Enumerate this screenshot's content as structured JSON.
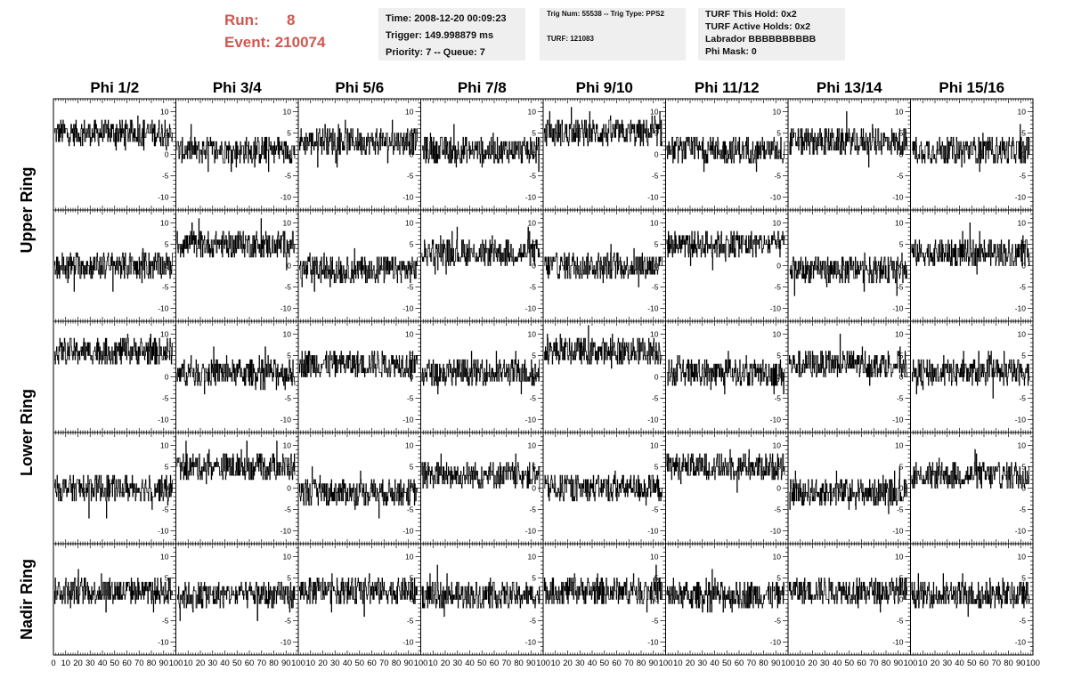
{
  "header": {
    "run_label": "Run:",
    "run_value": "8",
    "event_label": "Event:",
    "event_value": "210074",
    "time_line": "Time: 2008-12-20 00:09:23",
    "trigger_line": "Trigger: 149.998879 ms",
    "priority_line": "Priority: 7 -- Queue: 7",
    "trig_line": "Trig Num: 55538 -- Trig Type: PPS2",
    "turf_line": "TURF: 121083",
    "hold_line": "TURF This Hold: 0x2",
    "active_holds_line": "TURF Active Holds: 0x2",
    "labrador_line": "Labrador BBBBBBBBBB",
    "phi_mask_line": "Phi Mask: 0"
  },
  "chart_data": {
    "type": "line",
    "columns": [
      "Phi 1/2",
      "Phi 3/4",
      "Phi 5/6",
      "Phi 7/8",
      "Phi 9/10",
      "Phi 11/12",
      "Phi 13/14",
      "Phi 15/16"
    ],
    "rows": [
      "Upper Ring",
      "Upper Ring",
      "Lower Ring",
      "Lower Ring",
      "Nadir Ring"
    ],
    "row_labels": [
      "Upper Ring",
      "Lower Ring",
      "Nadir Ring"
    ],
    "xlim": [
      0,
      100
    ],
    "ylim": [
      -13,
      13
    ],
    "x_ticks": [
      0,
      10,
      20,
      30,
      40,
      50,
      60,
      70,
      80,
      90,
      100
    ],
    "y_ticks": [
      -10,
      -5,
      0,
      5,
      10
    ],
    "samples_per_trace": 256,
    "trace_baselines": [
      [
        5,
        1,
        3,
        1,
        5,
        1,
        3,
        1
      ],
      [
        0,
        5,
        -1,
        3,
        0,
        5,
        -1,
        3
      ],
      [
        6,
        1,
        3,
        1,
        6,
        1,
        3,
        1
      ],
      [
        0,
        5,
        -1,
        3,
        0,
        5,
        -1,
        3
      ],
      [
        2,
        1,
        2,
        1,
        2,
        1,
        2,
        1
      ]
    ],
    "trace_amplitude": 3
  }
}
